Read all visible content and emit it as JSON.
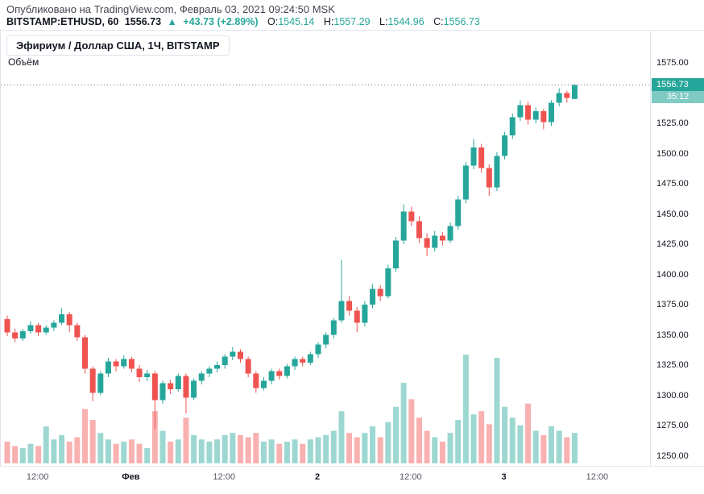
{
  "header": {
    "published_line": "Опубликовано на TradingView.com, Февраль 03, 2021 09:24:50 MSK",
    "symbol": "BITSTAMP:ETHUSD, 60",
    "last_price": "1556.73",
    "change_arrow": "▲",
    "change": "+43.73 (+2.89%)",
    "ohlc": {
      "o": {
        "label": "O:",
        "value": "1545.14"
      },
      "h": {
        "label": "H:",
        "value": "1557.29"
      },
      "l": {
        "label": "L:",
        "value": "1544.96"
      },
      "c": {
        "label": "C:",
        "value": "1556.73"
      }
    }
  },
  "legend": {
    "title": "Эфириум / Доллар США, 1Ч, BITSTAMP",
    "volume_label": "Объём"
  },
  "price_scale": {
    "labels": [
      "1575.00",
      "1550.00",
      "1525.00",
      "1500.00",
      "1475.00",
      "1450.00",
      "1425.00",
      "1400.00",
      "1375.00",
      "1350.00",
      "1325.00",
      "1300.00",
      "1275.00",
      "1250.00"
    ],
    "current_price_label": "1556.73",
    "countdown": "35:12"
  },
  "colors": {
    "up": "#26a69a",
    "down": "#ef5350",
    "volume_up": "#9dd7d1",
    "volume_down": "#f8b1b0",
    "badge": "#26a69a",
    "countdown_badge": "#80cac4",
    "price_line": "#787b86",
    "border": "#e0e3eb"
  },
  "chart_data": {
    "type": "candlestick_with_volume",
    "title": "Эфириум / Доллар США, 1Ч, BITSTAMP",
    "symbol": "BITSTAMP:ETHUSD",
    "interval": "1H",
    "last_price": 1556.73,
    "price_axis": {
      "min": 1250,
      "max": 1575,
      "step": 25
    },
    "time_labels": [
      {
        "index": 4,
        "text": "12:00",
        "bold": false
      },
      {
        "index": 16,
        "text": "Фев",
        "bold": true
      },
      {
        "index": 28,
        "text": "12:00",
        "bold": false
      },
      {
        "index": 40,
        "text": "2",
        "bold": true
      },
      {
        "index": 52,
        "text": "12:00",
        "bold": false
      },
      {
        "index": 64,
        "text": "3",
        "bold": true
      },
      {
        "index": 76,
        "text": "12:00",
        "bold": false
      }
    ],
    "candles": [
      [
        1363,
        1366,
        1349,
        1352
      ],
      [
        1352,
        1355,
        1344,
        1347
      ],
      [
        1347,
        1355,
        1345,
        1353
      ],
      [
        1353,
        1361,
        1351,
        1358
      ],
      [
        1358,
        1360,
        1349,
        1352
      ],
      [
        1352,
        1358,
        1350,
        1356
      ],
      [
        1356,
        1362,
        1353,
        1360
      ],
      [
        1360,
        1372,
        1358,
        1367
      ],
      [
        1367,
        1369,
        1352,
        1358
      ],
      [
        1358,
        1360,
        1345,
        1348
      ],
      [
        1348,
        1350,
        1318,
        1322
      ],
      [
        1322,
        1324,
        1295,
        1302
      ],
      [
        1302,
        1320,
        1300,
        1318
      ],
      [
        1318,
        1331,
        1315,
        1328
      ],
      [
        1328,
        1330,
        1320,
        1324
      ],
      [
        1324,
        1333,
        1322,
        1330
      ],
      [
        1330,
        1332,
        1319,
        1322
      ],
      [
        1322,
        1325,
        1311,
        1315
      ],
      [
        1315,
        1321,
        1312,
        1318
      ],
      [
        1318,
        1320,
        1272,
        1296
      ],
      [
        1296,
        1312,
        1293,
        1310
      ],
      [
        1310,
        1313,
        1301,
        1305
      ],
      [
        1305,
        1318,
        1303,
        1316
      ],
      [
        1316,
        1318,
        1285,
        1298
      ],
      [
        1298,
        1314,
        1296,
        1312
      ],
      [
        1312,
        1320,
        1309,
        1318
      ],
      [
        1318,
        1324,
        1315,
        1322
      ],
      [
        1322,
        1328,
        1319,
        1325
      ],
      [
        1325,
        1334,
        1322,
        1332
      ],
      [
        1332,
        1340,
        1329,
        1336
      ],
      [
        1336,
        1338,
        1327,
        1330
      ],
      [
        1330,
        1332,
        1315,
        1318
      ],
      [
        1318,
        1320,
        1302,
        1306
      ],
      [
        1306,
        1315,
        1304,
        1312
      ],
      [
        1312,
        1322,
        1309,
        1320
      ],
      [
        1320,
        1322,
        1313,
        1316
      ],
      [
        1316,
        1326,
        1314,
        1324
      ],
      [
        1324,
        1332,
        1321,
        1330
      ],
      [
        1330,
        1332,
        1324,
        1327
      ],
      [
        1327,
        1336,
        1325,
        1334
      ],
      [
        1334,
        1344,
        1331,
        1342
      ],
      [
        1342,
        1352,
        1339,
        1350
      ],
      [
        1350,
        1364,
        1347,
        1362
      ],
      [
        1362,
        1412,
        1360,
        1378
      ],
      [
        1378,
        1382,
        1366,
        1370
      ],
      [
        1370,
        1373,
        1352,
        1360
      ],
      [
        1360,
        1378,
        1357,
        1375
      ],
      [
        1375,
        1392,
        1372,
        1388
      ],
      [
        1388,
        1391,
        1378,
        1382
      ],
      [
        1382,
        1408,
        1380,
        1405
      ],
      [
        1405,
        1431,
        1402,
        1428
      ],
      [
        1428,
        1458,
        1425,
        1452
      ],
      [
        1452,
        1456,
        1440,
        1444
      ],
      [
        1444,
        1448,
        1426,
        1430
      ],
      [
        1430,
        1434,
        1415,
        1422
      ],
      [
        1422,
        1436,
        1419,
        1432
      ],
      [
        1432,
        1435,
        1424,
        1428
      ],
      [
        1428,
        1443,
        1426,
        1440
      ],
      [
        1440,
        1465,
        1437,
        1462
      ],
      [
        1462,
        1493,
        1459,
        1490
      ],
      [
        1490,
        1512,
        1487,
        1505
      ],
      [
        1505,
        1508,
        1484,
        1488
      ],
      [
        1488,
        1491,
        1465,
        1472
      ],
      [
        1472,
        1501,
        1469,
        1498
      ],
      [
        1498,
        1518,
        1495,
        1515
      ],
      [
        1515,
        1533,
        1512,
        1530
      ],
      [
        1530,
        1544,
        1527,
        1540
      ],
      [
        1540,
        1543,
        1524,
        1528
      ],
      [
        1528,
        1538,
        1525,
        1535
      ],
      [
        1535,
        1537,
        1520,
        1526
      ],
      [
        1526,
        1544,
        1523,
        1542
      ],
      [
        1542,
        1554,
        1539,
        1550
      ],
      [
        1550,
        1552,
        1542,
        1546
      ],
      [
        1545.14,
        1557.29,
        1544.96,
        1556.73
      ]
    ],
    "volumes": [
      20,
      16,
      14,
      18,
      16,
      34,
      22,
      26,
      20,
      24,
      50,
      40,
      28,
      22,
      18,
      20,
      22,
      18,
      14,
      48,
      30,
      20,
      22,
      42,
      26,
      22,
      20,
      22,
      26,
      28,
      26,
      24,
      28,
      20,
      22,
      18,
      20,
      22,
      18,
      22,
      24,
      26,
      30,
      48,
      28,
      24,
      28,
      34,
      24,
      38,
      52,
      74,
      59,
      42,
      30,
      24,
      20,
      28,
      40,
      100,
      45,
      48,
      36,
      97,
      52,
      42,
      35,
      55,
      30,
      26,
      34,
      30,
      24,
      28
    ]
  }
}
